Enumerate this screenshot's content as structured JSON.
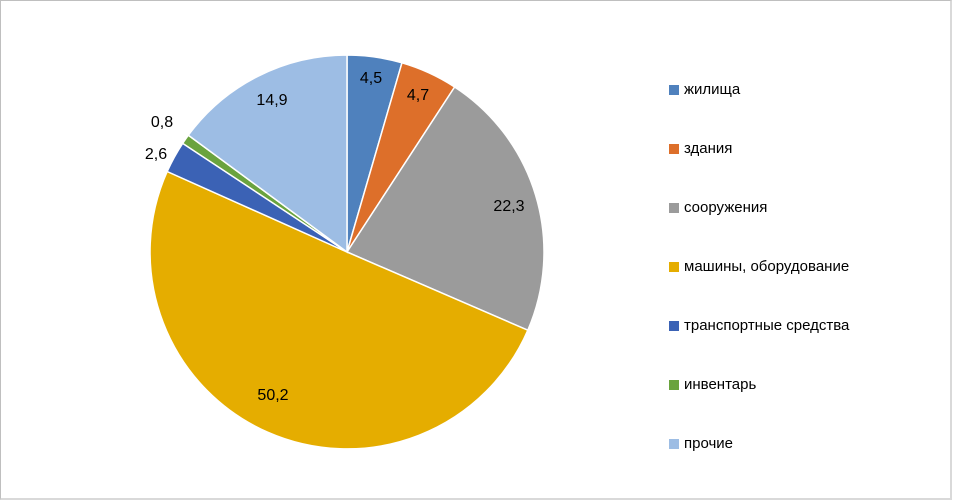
{
  "chart_data": {
    "type": "pie",
    "categories": [
      "жилища",
      "здания",
      "сооружения",
      "машины, оборудование",
      "транспортные средства",
      "инвентарь",
      "прочие"
    ],
    "values": [
      4.5,
      4.7,
      22.3,
      50.2,
      2.6,
      0.8,
      14.9
    ],
    "data_labels": [
      "4,5",
      "4,7",
      "22,3",
      "50,2",
      "2,6",
      "0,8",
      "14,9"
    ],
    "colors": [
      "#4f81bd",
      "#dd6f2a",
      "#9b9b9b",
      "#e5ad00",
      "#3b62b5",
      "#6aa33e",
      "#9dbde4"
    ],
    "legend_position": "right",
    "title": ""
  }
}
